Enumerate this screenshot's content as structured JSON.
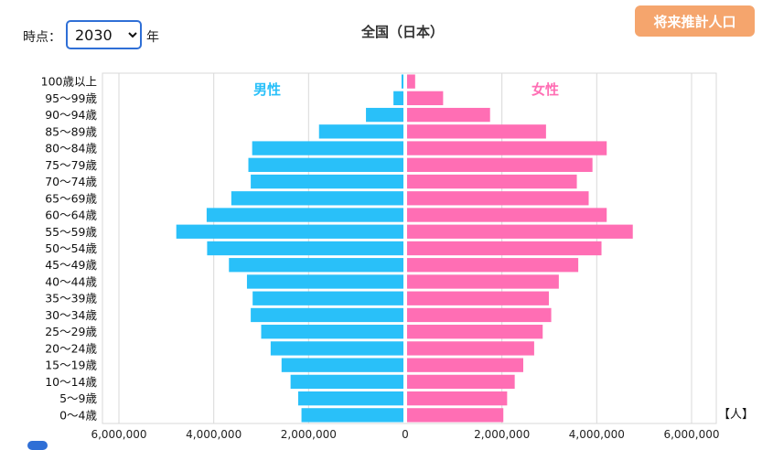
{
  "controls": {
    "year_label": "時点：",
    "year_value": "2030",
    "year_unit": "年",
    "projection_button": "将来推計人口"
  },
  "chart_data": {
    "type": "bar",
    "orientation": "horizontal-pyramid",
    "title": "全国（日本）",
    "unit_label": "【人】",
    "categories": [
      "0〜4歳",
      "5〜9歳",
      "10〜14歳",
      "15〜19歳",
      "20〜24歳",
      "25〜29歳",
      "30〜34歳",
      "35〜39歳",
      "40〜44歳",
      "45〜49歳",
      "50〜54歳",
      "55〜59歳",
      "60〜64歳",
      "65〜69歳",
      "70〜74歳",
      "75〜79歳",
      "80〜84歳",
      "85〜89歳",
      "90〜94歳",
      "95〜99歳",
      "100歳以上"
    ],
    "series": [
      {
        "name": "男性",
        "color": "#29c0f9",
        "side": "left",
        "values": [
          2150000,
          2220000,
          2380000,
          2570000,
          2800000,
          3000000,
          3220000,
          3180000,
          3300000,
          3680000,
          4140000,
          4790000,
          4150000,
          3630000,
          3220000,
          3270000,
          3190000,
          1780000,
          790000,
          210000,
          40000
        ]
      },
      {
        "name": "女性",
        "color": "#ff6eb4",
        "side": "right",
        "values": [
          2030000,
          2110000,
          2270000,
          2450000,
          2680000,
          2860000,
          3040000,
          2990000,
          3200000,
          3610000,
          4100000,
          4760000,
          4210000,
          3830000,
          3580000,
          3910000,
          4210000,
          2930000,
          1750000,
          760000,
          170000
        ]
      }
    ],
    "x_ticks": [
      "6,000,000",
      "4,000,000",
      "2,000,000",
      "0",
      "2,000,000",
      "4,000,000",
      "6,000,000"
    ],
    "xlim": [
      -6000000,
      6000000
    ],
    "grid": true
  }
}
